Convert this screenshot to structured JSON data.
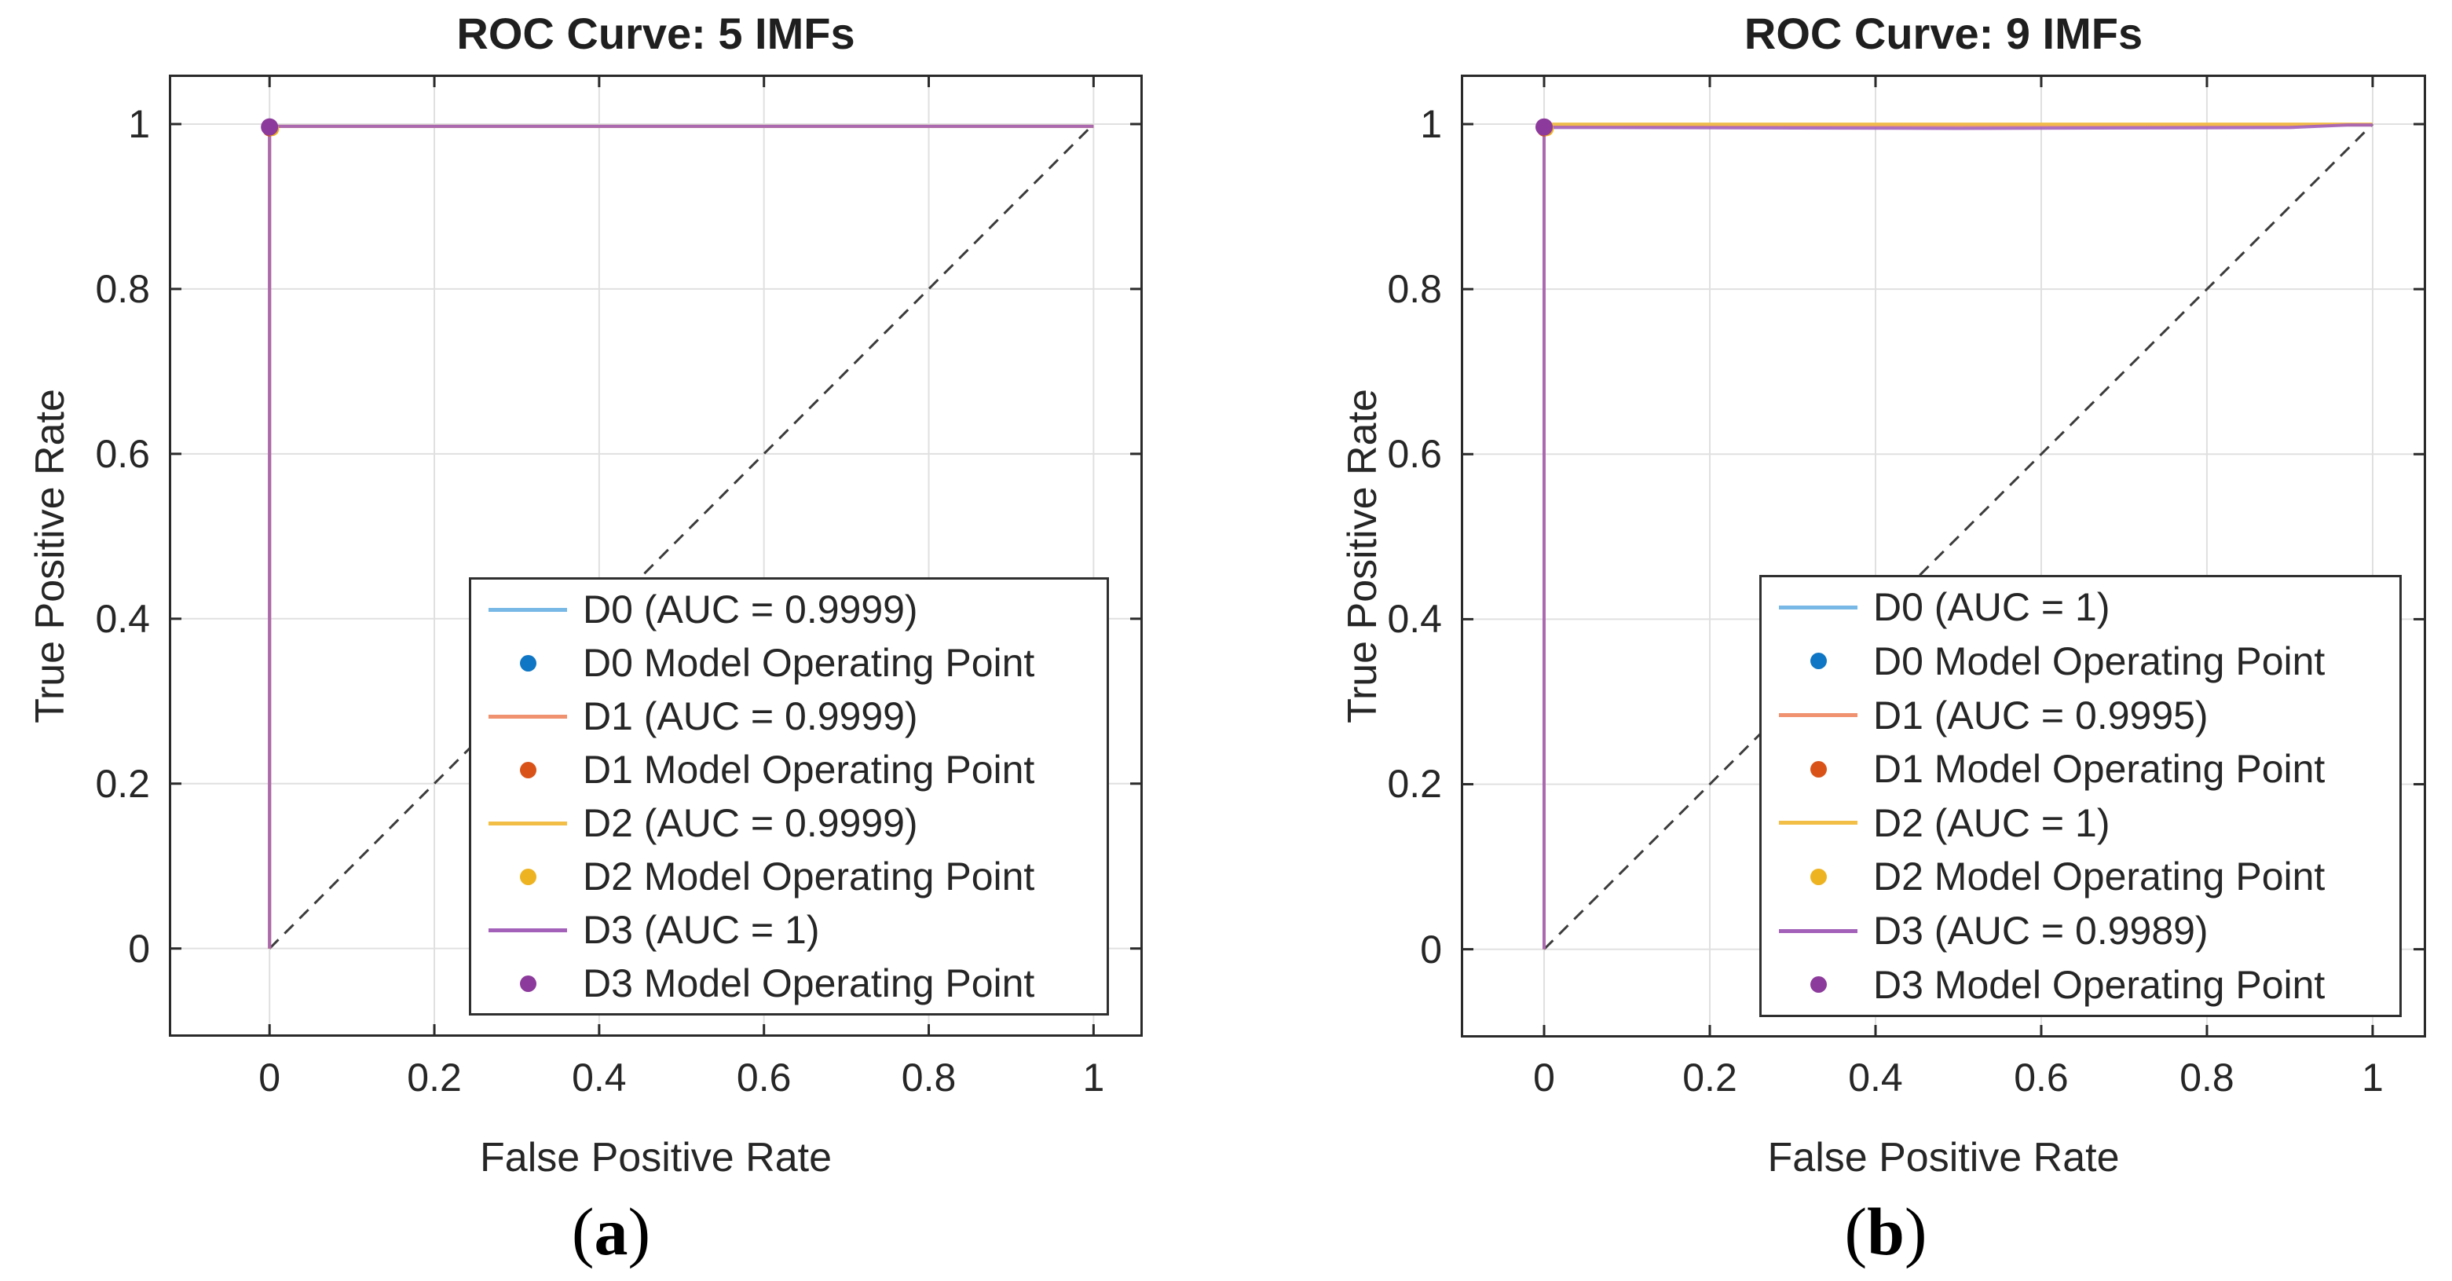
{
  "figure": {
    "background": "#FFFFFF",
    "description": "Two ROC curve subplots comparing models trained with 5 IMFs and 9 IMFs"
  },
  "colors": {
    "axis_box": "#2A2A2A",
    "grid": "#E0E0E0",
    "tick_text": "#262626",
    "title_text": "#1F1F1F",
    "reference_dashed": "#3C3C3C",
    "legend_border": "#2F2F2F"
  },
  "captions": [
    {
      "open": "(",
      "letter": "a",
      "close": ")"
    },
    {
      "open": "(",
      "letter": "b",
      "close": ")"
    }
  ],
  "chart_data": [
    {
      "type": "line",
      "panel": "a",
      "title": "ROC Curve: 5 IMFs",
      "xlabel": "False Positive Rate",
      "ylabel": "True Positive Rate",
      "xlim": [
        -0.1222,
        1.0597
      ],
      "ylim": [
        -0.107,
        1.06
      ],
      "xticks": [
        0,
        0.2,
        0.4,
        0.6,
        0.8,
        1
      ],
      "xtick_labels": [
        "0",
        "0.2",
        "0.4",
        "0.6",
        "0.8",
        "1"
      ],
      "yticks": [
        0,
        0.2,
        0.4,
        0.6,
        0.8,
        1
      ],
      "ytick_labels": [
        "0",
        "0.2",
        "0.4",
        "0.6",
        "0.8",
        "1"
      ],
      "grid": true,
      "legend_position": "south east inside",
      "reference_line": {
        "style": "dashed",
        "from": [
          0,
          0
        ],
        "to": [
          1,
          1
        ]
      },
      "series": [
        {
          "name": "D0",
          "auc": "0.9999",
          "line_color": "#77B8E6",
          "marker_color": "#0E76C4",
          "points": [
            [
              0,
              0
            ],
            [
              0,
              0.9972
            ],
            [
              1,
              0.9972
            ]
          ],
          "operating_point": [
            0,
            0.9965
          ],
          "marker_r": 9,
          "legend_line_label": "D0 (AUC = 0.9999)",
          "legend_marker_label": "D0 Model Operating Point"
        },
        {
          "name": "D1",
          "auc": "0.9999",
          "line_color": "#F0916F",
          "marker_color": "#D95319",
          "points": [
            [
              0,
              0
            ],
            [
              0,
              0.9972
            ],
            [
              1,
              0.9972
            ]
          ],
          "operating_point": [
            0,
            0.9936
          ],
          "marker_r": 9,
          "legend_line_label": "D1 (AUC = 0.9999)",
          "legend_marker_label": "D1 Model Operating Point"
        },
        {
          "name": "D2",
          "auc": "0.9999",
          "line_color": "#F3BE45",
          "marker_color": "#EEB320",
          "points": [
            [
              0,
              0
            ],
            [
              0,
              0.9972
            ],
            [
              1,
              0.9972
            ]
          ],
          "operating_point": [
            0.003,
            0.994
          ],
          "marker_r": 9,
          "legend_line_label": "D2 (AUC = 0.9999)",
          "legend_marker_label": "D2 Model Operating Point"
        },
        {
          "name": "D3",
          "auc": "1",
          "line_color": "#A361BA",
          "marker_color": "#8C3A9C",
          "points": [
            [
              0,
              0
            ],
            [
              0,
              0.9972
            ],
            [
              1,
              0.9972
            ]
          ],
          "operating_point": [
            0,
            0.9965
          ],
          "marker_r": 11,
          "legend_line_label": "D3 (AUC = 1)",
          "legend_marker_label": "D3 Model Operating Point"
        }
      ]
    },
    {
      "type": "line",
      "panel": "b",
      "title": "ROC Curve: 9 IMFs",
      "xlabel": "False Positive Rate",
      "ylabel": "True Positive Rate",
      "xlim": [
        -0.1005,
        1.0645
      ],
      "ylim": [
        -0.107,
        1.06
      ],
      "xticks": [
        0,
        0.2,
        0.4,
        0.6,
        0.8,
        1
      ],
      "xtick_labels": [
        "0",
        "0.2",
        "0.4",
        "0.6",
        "0.8",
        "1"
      ],
      "yticks": [
        0,
        0.2,
        0.4,
        0.6,
        0.8,
        1
      ],
      "ytick_labels": [
        "0",
        "0.2",
        "0.4",
        "0.6",
        "0.8",
        "1"
      ],
      "grid": true,
      "legend_position": "south east inside",
      "reference_line": {
        "style": "dashed",
        "from": [
          0,
          0
        ],
        "to": [
          1,
          1
        ]
      },
      "series": [
        {
          "name": "D0",
          "auc": "1",
          "line_color": "#77B8E6",
          "marker_color": "#0E76C4",
          "points": [
            [
              0,
              0
            ],
            [
              0,
              0.999
            ],
            [
              1,
              0.999
            ]
          ],
          "operating_point": [
            0,
            0.9965
          ],
          "marker_r": 9,
          "legend_line_label": "D0 (AUC = 1)",
          "legend_marker_label": "D0 Model Operating Point"
        },
        {
          "name": "D1",
          "auc": "0.9995",
          "line_color": "#F0916F",
          "marker_color": "#D95319",
          "points": [
            [
              0,
              0
            ],
            [
              0,
              0.9978
            ],
            [
              0.55,
              0.9985
            ],
            [
              0.97,
              0.999
            ],
            [
              1,
              0.999
            ]
          ],
          "operating_point": [
            0,
            0.9936
          ],
          "marker_r": 9,
          "legend_line_label": "D1 (AUC = 0.9995)",
          "legend_marker_label": "D1 Model Operating Point"
        },
        {
          "name": "D2",
          "auc": "1",
          "line_color": "#F3BE45",
          "marker_color": "#EEB320",
          "points": [
            [
              0,
              0
            ],
            [
              0,
              1
            ],
            [
              1,
              1
            ]
          ],
          "operating_point": [
            0.003,
            0.994
          ],
          "marker_r": 9,
          "legend_line_label": "D2 (AUC = 1)",
          "legend_marker_label": "D2 Model Operating Point"
        },
        {
          "name": "D3",
          "auc": "0.9989",
          "line_color": "#A361BA",
          "marker_color": "#8C3A9C",
          "points": [
            [
              0,
              0
            ],
            [
              0,
              0.996
            ],
            [
              0.5,
              0.9948
            ],
            [
              0.9,
              0.9958
            ],
            [
              0.97,
              0.999
            ],
            [
              1,
              0.999
            ]
          ],
          "operating_point": [
            0,
            0.9965
          ],
          "marker_r": 11,
          "legend_line_label": "D3 (AUC = 0.9989)",
          "legend_marker_label": "D3 Model Operating Point"
        }
      ]
    }
  ]
}
